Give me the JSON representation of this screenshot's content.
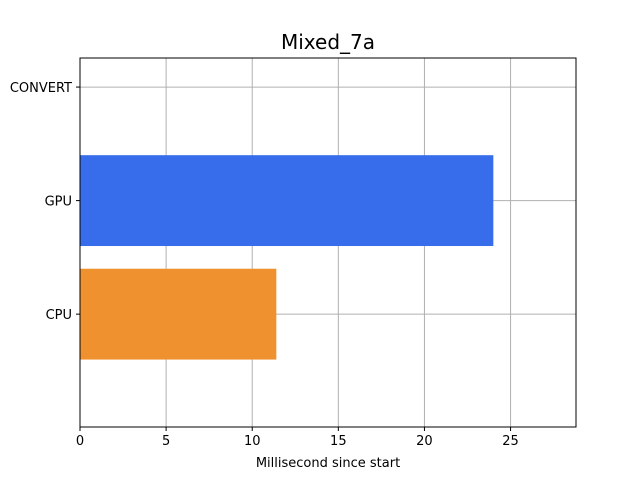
{
  "chart_data": {
    "type": "bar",
    "orientation": "horizontal",
    "title": "Mixed_7a",
    "xlabel": "Millisecond since start",
    "ylabel": "",
    "categories": [
      "CPU",
      "GPU",
      "CONVERT"
    ],
    "values": [
      11.4,
      24.0,
      0
    ],
    "bar_colors": [
      "#f0912f",
      "#376ceb",
      "#376ceb"
    ],
    "xlim": [
      0,
      28.8
    ],
    "xticks": [
      0,
      5,
      10,
      15,
      20,
      25
    ],
    "grid": true
  }
}
